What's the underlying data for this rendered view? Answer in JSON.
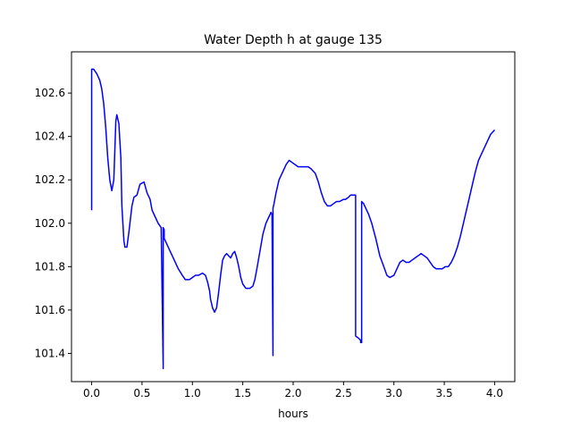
{
  "chart_data": {
    "type": "line",
    "title": "Water Depth h at gauge 135",
    "xlabel": "hours",
    "ylabel": "",
    "xlim": [
      -0.2,
      4.2
    ],
    "ylim": [
      101.27,
      102.79
    ],
    "xticks": [
      0.0,
      0.5,
      1.0,
      1.5,
      2.0,
      2.5,
      3.0,
      3.5,
      4.0
    ],
    "xtick_labels": [
      "0.0",
      "0.5",
      "1.0",
      "1.5",
      "2.0",
      "2.5",
      "3.0",
      "3.5",
      "4.0"
    ],
    "yticks": [
      101.4,
      101.6,
      101.8,
      102.0,
      102.2,
      102.4,
      102.6
    ],
    "ytick_labels": [
      "101.4",
      "101.6",
      "101.8",
      "102.0",
      "102.2",
      "102.4",
      "102.6"
    ],
    "grid": false,
    "series": [
      {
        "color": "#0000ff",
        "x": [
          0.0,
          0.0,
          0.02,
          0.05,
          0.08,
          0.1,
          0.12,
          0.14,
          0.16,
          0.18,
          0.2,
          0.22,
          0.24,
          0.25,
          0.27,
          0.29,
          0.3,
          0.32,
          0.33,
          0.35,
          0.37,
          0.4,
          0.42,
          0.45,
          0.48,
          0.52,
          0.55,
          0.58,
          0.6,
          0.63,
          0.66,
          0.69,
          0.71,
          0.71,
          0.71,
          0.72,
          0.72,
          0.72,
          0.73,
          0.75,
          0.77,
          0.8,
          0.83,
          0.86,
          0.9,
          0.93,
          0.97,
          1.0,
          1.03,
          1.06,
          1.1,
          1.13,
          1.15,
          1.17,
          1.18,
          1.2,
          1.22,
          1.24,
          1.26,
          1.28,
          1.3,
          1.32,
          1.34,
          1.36,
          1.38,
          1.4,
          1.42,
          1.44,
          1.46,
          1.48,
          1.5,
          1.53,
          1.57,
          1.6,
          1.62,
          1.64,
          1.67,
          1.7,
          1.73,
          1.76,
          1.78,
          1.79,
          1.8,
          1.8,
          1.8,
          1.81,
          1.83,
          1.86,
          1.9,
          1.93,
          1.96,
          1.99,
          2.02,
          2.05,
          2.08,
          2.11,
          2.15,
          2.18,
          2.22,
          2.25,
          2.28,
          2.31,
          2.34,
          2.37,
          2.4,
          2.43,
          2.46,
          2.5,
          2.52,
          2.55,
          2.57,
          2.6,
          2.62,
          2.62,
          2.62,
          2.65,
          2.67,
          2.67,
          2.68,
          2.68,
          2.7,
          2.72,
          2.75,
          2.78,
          2.82,
          2.86,
          2.9,
          2.93,
          2.96,
          3.0,
          3.03,
          3.06,
          3.09,
          3.12,
          3.15,
          3.18,
          3.21,
          3.24,
          3.27,
          3.3,
          3.33,
          3.36,
          3.39,
          3.42,
          3.45,
          3.48,
          3.51,
          3.54,
          3.57,
          3.6,
          3.63,
          3.66,
          3.69,
          3.72,
          3.75,
          3.78,
          3.81,
          3.84,
          3.87,
          3.9,
          3.93,
          3.96,
          4.0
        ],
        "y": [
          102.06,
          102.71,
          102.71,
          102.69,
          102.66,
          102.62,
          102.55,
          102.44,
          102.3,
          102.2,
          102.15,
          102.2,
          102.47,
          102.5,
          102.46,
          102.3,
          102.08,
          101.92,
          101.89,
          101.89,
          101.96,
          102.08,
          102.12,
          102.13,
          102.18,
          102.19,
          102.14,
          102.11,
          102.06,
          102.03,
          102.0,
          101.98,
          101.34,
          101.33,
          101.98,
          101.97,
          101.95,
          101.93,
          101.92,
          101.9,
          101.88,
          101.85,
          101.82,
          101.79,
          101.76,
          101.74,
          101.74,
          101.75,
          101.76,
          101.76,
          101.77,
          101.76,
          101.73,
          101.69,
          101.65,
          101.61,
          101.59,
          101.61,
          101.68,
          101.76,
          101.83,
          101.85,
          101.86,
          101.85,
          101.84,
          101.86,
          101.87,
          101.84,
          101.8,
          101.75,
          101.72,
          101.7,
          101.7,
          101.71,
          101.74,
          101.79,
          101.87,
          101.95,
          102.0,
          102.03,
          102.05,
          102.04,
          101.39,
          102.06,
          102.07,
          102.09,
          102.14,
          102.2,
          102.24,
          102.27,
          102.29,
          102.28,
          102.27,
          102.26,
          102.26,
          102.26,
          102.26,
          102.25,
          102.23,
          102.19,
          102.14,
          102.1,
          102.08,
          102.08,
          102.09,
          102.1,
          102.1,
          102.11,
          102.11,
          102.12,
          102.13,
          102.13,
          102.13,
          101.48,
          101.48,
          101.47,
          101.46,
          101.45,
          101.45,
          102.1,
          102.09,
          102.07,
          102.04,
          102.0,
          101.93,
          101.85,
          101.8,
          101.76,
          101.75,
          101.76,
          101.79,
          101.82,
          101.83,
          101.82,
          101.82,
          101.83,
          101.84,
          101.85,
          101.86,
          101.85,
          101.84,
          101.82,
          101.8,
          101.79,
          101.79,
          101.79,
          101.8,
          101.8,
          101.82,
          101.85,
          101.89,
          101.94,
          102.0,
          102.06,
          102.12,
          102.18,
          102.24,
          102.29,
          102.32,
          102.35,
          102.38,
          102.41,
          102.43
        ]
      }
    ]
  }
}
